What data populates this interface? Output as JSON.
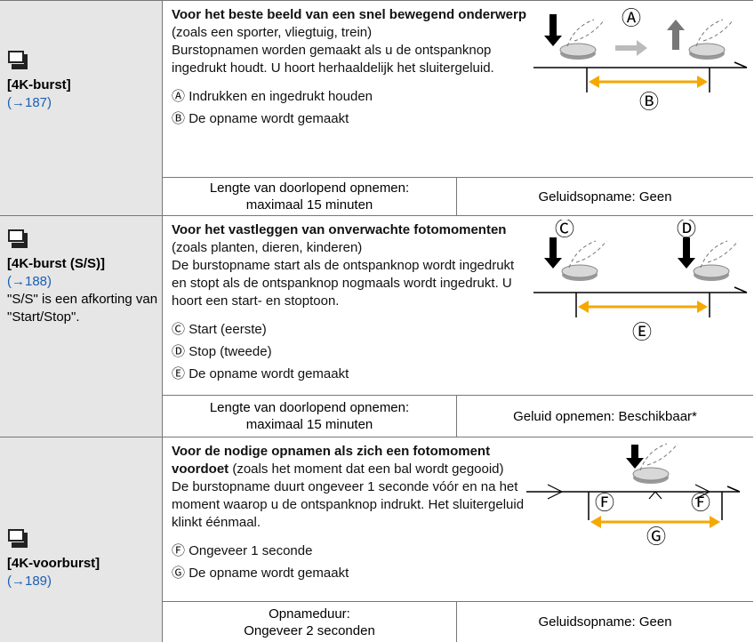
{
  "rows": [
    {
      "name": "[4K-burst]",
      "ref": "(→187)",
      "title": "Voor het beste beeld van een snel bewegend onderwerp",
      "context": "(zoals een sporter, vliegtuig, trein)",
      "body": "Burstopnamen worden gemaakt als u de ontspanknop ingedrukt houdt. U hoort herhaaldelijk het sluitergeluid.",
      "legend": [
        {
          "marker": "Ⓐ",
          "text": "Indrukken en ingedrukt houden"
        },
        {
          "marker": "Ⓑ",
          "text": "De opname wordt gemaakt"
        }
      ],
      "diagram": [
        "Ⓐ",
        "Ⓑ"
      ],
      "sub": [
        "Lengte van doorlopend opnemen:\nmaximaal 15 minuten",
        "Geluidsopname: Geen"
      ]
    },
    {
      "name": "[4K-burst (S/S)]",
      "ref": "(→188)",
      "note": "\"S/S\" is een afkorting van \"Start/Stop\".",
      "title": "Voor het vastleggen van onverwachte fotomomenten",
      "context": "(zoals planten, dieren, kinderen)",
      "body": "De burstopname start als de ontspanknop wordt ingedrukt en stopt als de ontspanknop nogmaals wordt ingedrukt. U hoort een start- en stoptoon.",
      "legend": [
        {
          "marker": "Ⓒ",
          "text": "Start (eerste)"
        },
        {
          "marker": "Ⓓ",
          "text": "Stop (tweede)"
        },
        {
          "marker": "Ⓔ",
          "text": "De opname wordt gemaakt"
        }
      ],
      "diagram": [
        "Ⓒ",
        "Ⓓ",
        "Ⓔ"
      ],
      "sub": [
        "Lengte van doorlopend opnemen:\nmaximaal 15 minuten",
        "Geluid opnemen: Beschikbaar*"
      ]
    },
    {
      "name": "[4K-voorburst]",
      "ref": "(→189)",
      "title": "Voor de nodige opnamen als zich een fotomoment voordoet",
      "context": "(zoals het moment dat een bal wordt gegooid)",
      "body": "De burstopname duurt ongeveer 1 seconde vóór en na het moment waarop u de ontspanknop indrukt. Het sluitergeluid klinkt éénmaal.",
      "legend": [
        {
          "marker": "Ⓕ",
          "text": "Ongeveer 1 seconde"
        },
        {
          "marker": "Ⓖ",
          "text": "De opname wordt gemaakt"
        }
      ],
      "diagram": [
        "Ⓕ",
        "Ⓕ",
        "Ⓖ"
      ],
      "sub": [
        "Opnameduur:\nOngeveer 2 seconden",
        "Geluidsopname: Geen"
      ]
    }
  ]
}
